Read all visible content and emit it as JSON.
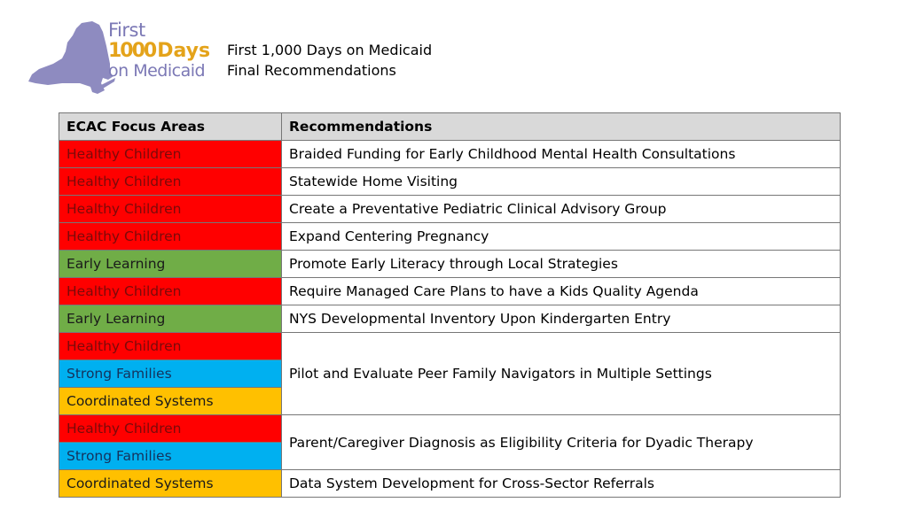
{
  "logo": {
    "word_first": "First",
    "number": "1000",
    "word_days": "Days",
    "word_on_medicaid": "on Medicaid",
    "state_color": "#8e8bc0",
    "number_color": "#e4a31a",
    "text_color": "#7b78b5"
  },
  "header": {
    "line1": "First 1,000 Days on Medicaid",
    "line2": "Final Recommendations"
  },
  "table": {
    "columns": [
      "ECAC Focus Areas",
      "Recommendations"
    ],
    "rows": [
      {
        "area": "Healthy Children",
        "recommendation": "Braided Funding for Early Childhood Mental Health Consultations"
      },
      {
        "area": "Healthy Children",
        "recommendation": "Statewide Home Visiting"
      },
      {
        "area": "Healthy Children",
        "recommendation": "Create a Preventative Pediatric Clinical Advisory Group"
      },
      {
        "area": "Healthy Children",
        "recommendation": "Expand Centering Pregnancy"
      },
      {
        "area": "Early Learning",
        "recommendation": "Promote Early Literacy through Local Strategies"
      },
      {
        "area": "Healthy Children",
        "recommendation": "Require Managed Care Plans to have a Kids Quality Agenda"
      },
      {
        "area": "Early Learning",
        "recommendation": "NYS Developmental Inventory Upon Kindergarten Entry"
      },
      {
        "areas": [
          "Healthy Children",
          "Strong Families",
          "Coordinated Systems"
        ],
        "recommendation": "Pilot and Evaluate Peer Family Navigators in Multiple Settings"
      },
      {
        "areas": [
          "Healthy Children",
          "Strong Families"
        ],
        "recommendation": "Parent/Caregiver Diagnosis as Eligibility Criteria for Dyadic Therapy"
      },
      {
        "area": "Coordinated Systems",
        "recommendation": "Data System Development for Cross-Sector Referrals"
      }
    ]
  },
  "area_colors": {
    "Healthy Children": "#ff0000",
    "Early Learning": "#70ad47",
    "Strong Families": "#00b0f0",
    "Coordinated Systems": "#ffc000"
  }
}
